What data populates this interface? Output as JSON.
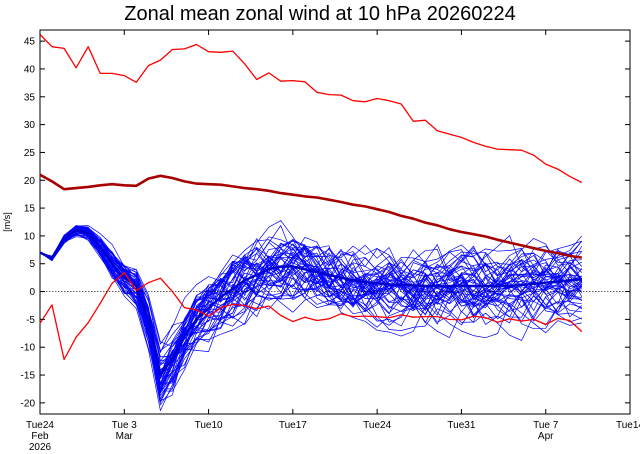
{
  "chart_data": {
    "type": "line",
    "title": "Zonal mean zonal wind at 10 hPa 20260224",
    "ylabel": "[m/s]",
    "xlabel": "",
    "ylim": [
      -22,
      47
    ],
    "xlim": [
      0,
      49
    ],
    "grid": false,
    "zero_line": true,
    "y_ticks": [
      -20,
      -15,
      -10,
      -5,
      0,
      5,
      10,
      15,
      20,
      25,
      30,
      35,
      40,
      45
    ],
    "x_ticks": [
      {
        "day": 0,
        "label": "Tue24",
        "sub1": "Feb",
        "sub2": "2026"
      },
      {
        "day": 7,
        "label": "Tue 3",
        "sub1": "Mar",
        "sub2": ""
      },
      {
        "day": 14,
        "label": "Tue10",
        "sub1": "",
        "sub2": ""
      },
      {
        "day": 21,
        "label": "Tue17",
        "sub1": "",
        "sub2": ""
      },
      {
        "day": 28,
        "label": "Tue24",
        "sub1": "",
        "sub2": ""
      },
      {
        "day": 35,
        "label": "Tue31",
        "sub1": "",
        "sub2": ""
      },
      {
        "day": 42,
        "label": "Tue 7",
        "sub1": "Apr",
        "sub2": ""
      },
      {
        "day": 49,
        "label": "Tue14",
        "sub1": "",
        "sub2": ""
      }
    ],
    "ensemble": {
      "members": 50,
      "color": "#0000ff",
      "days": [
        0,
        1,
        2,
        3,
        4,
        5,
        6,
        7,
        8,
        9,
        10,
        11,
        12,
        13,
        14,
        15,
        16,
        17,
        18,
        19,
        20,
        21,
        22,
        23,
        24,
        25,
        26,
        27,
        28,
        29,
        30,
        31,
        32,
        33,
        34,
        35,
        36,
        37,
        38,
        39,
        40,
        41,
        42,
        43,
        44,
        45
      ],
      "mean": [
        7,
        6,
        9.5,
        11,
        10.5,
        8,
        5,
        2.5,
        1,
        -5,
        -15,
        -12,
        -8,
        -5,
        -3,
        -1,
        0.5,
        2,
        3,
        4,
        4.5,
        4.5,
        4,
        3.5,
        3,
        2.5,
        2,
        1.7,
        1.5,
        1.3,
        1.2,
        1.1,
        1,
        1,
        1,
        1,
        1,
        1,
        1,
        1,
        1.2,
        1.4,
        1.6,
        1.8,
        2,
        2.2
      ],
      "spread": [
        0,
        0.3,
        0.6,
        0.8,
        1,
        1.5,
        2,
        2.5,
        3,
        4,
        4.5,
        5,
        5,
        5.2,
        5.4,
        5.6,
        5.8,
        5.9,
        6,
        6,
        6,
        6,
        6,
        6,
        6,
        6,
        6,
        6,
        6,
        6,
        6,
        6,
        6,
        6,
        6,
        6,
        6,
        6,
        6,
        6,
        6,
        6,
        6,
        6,
        6,
        6
      ]
    },
    "series": [
      {
        "color": "#ff0000",
        "width": 1.3,
        "days": [
          0,
          1,
          2,
          3,
          4,
          5,
          6,
          7,
          8,
          9,
          10,
          11,
          12,
          13,
          14,
          15,
          16,
          17,
          18,
          19,
          20,
          21,
          22,
          23,
          24,
          25,
          26,
          27,
          28,
          29,
          30,
          31,
          32,
          33,
          34,
          35,
          36,
          37,
          38,
          39,
          40,
          41,
          42,
          43,
          44,
          45
        ],
        "values": [
          46.2,
          44,
          43.7,
          40.2,
          44,
          39.2,
          39.2,
          38.8,
          37.6,
          40.6,
          41.6,
          43.5,
          43.6,
          44.4,
          43.1,
          43,
          43.2,
          40.9,
          38.1,
          39.3,
          37.8,
          37.9,
          37.7,
          35.8,
          35.4,
          35.3,
          34.3,
          34.1,
          34.7,
          34.3,
          33.7,
          30.6,
          30.8,
          28.9,
          28.3,
          27.7,
          26.8,
          26.1,
          25.6,
          25.5,
          25.4,
          24.5,
          22.9,
          22,
          20.7,
          19.6
        ]
      },
      {
        "color": "#ff0000",
        "width": 1.3,
        "days": [
          0,
          1,
          2,
          3,
          4,
          5,
          6,
          7,
          8,
          9,
          10,
          11,
          12,
          13,
          14,
          15,
          16,
          17,
          18,
          19,
          20,
          21,
          22,
          23,
          24,
          25,
          26,
          27,
          28,
          29,
          30,
          31,
          32,
          33,
          34,
          35,
          36,
          37,
          38,
          39,
          40,
          41,
          42,
          43,
          44,
          45
        ],
        "values": [
          -5.7,
          -2.4,
          -12.2,
          -8.2,
          -5.6,
          -2.1,
          1.5,
          3.4,
          0.2,
          1.6,
          2.4,
          0,
          -2.9,
          -3.3,
          -4.4,
          -2.9,
          -2.3,
          -2.5,
          -3.1,
          -2.6,
          -4.3,
          -5.4,
          -4.6,
          -5.2,
          -4.9,
          -4,
          -4.5,
          -4.4,
          -4.5,
          -4.7,
          -4.2,
          -4.6,
          -4.5,
          -4.5,
          -5,
          -5.1,
          -4.4,
          -4.7,
          -5.5,
          -4.9,
          -5.3,
          -5,
          -5.9,
          -4.8,
          -5.2,
          -7.2
        ]
      },
      {
        "color": "#a80000",
        "width": 2.6,
        "days": [
          0,
          1,
          2,
          3,
          4,
          5,
          6,
          7,
          8,
          9,
          10,
          11,
          12,
          13,
          14,
          15,
          16,
          17,
          18,
          19,
          20,
          21,
          22,
          23,
          24,
          25,
          26,
          27,
          28,
          29,
          30,
          31,
          32,
          33,
          34,
          35,
          36,
          37,
          38,
          39,
          40,
          41,
          42,
          43,
          44,
          45
        ],
        "values": [
          21,
          19.8,
          18.4,
          18.6,
          18.8,
          19.1,
          19.3,
          19.1,
          19,
          20.3,
          20.8,
          20.4,
          19.8,
          19.4,
          19.3,
          19.2,
          18.9,
          18.6,
          18.4,
          18.1,
          17.7,
          17.4,
          17.1,
          16.9,
          16.5,
          16.1,
          15.6,
          15.3,
          14.8,
          14.3,
          13.6,
          13.1,
          12.4,
          11.9,
          11.2,
          10.7,
          10.3,
          9.9,
          9.3,
          8.8,
          8.3,
          7.8,
          7.3,
          6.9,
          6.4,
          6.1
        ]
      }
    ]
  }
}
